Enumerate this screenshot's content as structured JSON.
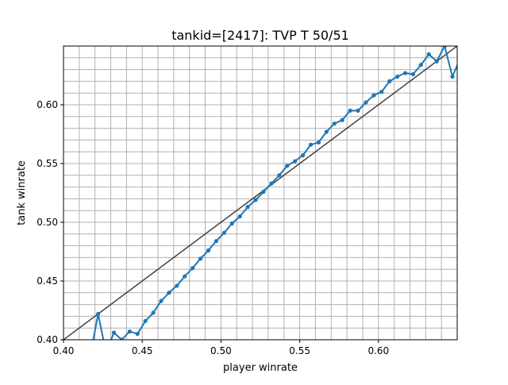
{
  "chart_data": {
    "type": "line",
    "title": "tankid=[2417]: TVP T 50/51",
    "xlabel": "player winrate",
    "ylabel": "tank winrate",
    "xlim": [
      0.4,
      0.65
    ],
    "ylim": [
      0.4,
      0.65
    ],
    "x_ticks": [
      "0.40",
      "0.45",
      "0.50",
      "0.55",
      "0.60"
    ],
    "y_ticks": [
      "0.40",
      "0.45",
      "0.50",
      "0.55",
      "0.60"
    ],
    "x_tick_values": [
      0.4,
      0.45,
      0.5,
      0.55,
      0.6
    ],
    "y_tick_values": [
      0.4,
      0.45,
      0.5,
      0.55,
      0.6
    ],
    "grid": true,
    "minor_grid_step": 0.01,
    "series": [
      {
        "color": "#1f77b4",
        "x": [
          0.417,
          0.422,
          0.427,
          0.432,
          0.437,
          0.442,
          0.447,
          0.452,
          0.457,
          0.462,
          0.467,
          0.472,
          0.477,
          0.482,
          0.487,
          0.492,
          0.497,
          0.502,
          0.507,
          0.512,
          0.517,
          0.522,
          0.527,
          0.532,
          0.537,
          0.542,
          0.547,
          0.552,
          0.557,
          0.562,
          0.567,
          0.572,
          0.577,
          0.582,
          0.587,
          0.592,
          0.597,
          0.602,
          0.607,
          0.612,
          0.617,
          0.622,
          0.627,
          0.632,
          0.637,
          0.642,
          0.647,
          0.652
        ],
        "y": [
          0.386,
          0.422,
          0.389,
          0.406,
          0.4,
          0.407,
          0.405,
          0.416,
          0.423,
          0.433,
          0.44,
          0.446,
          0.454,
          0.461,
          0.469,
          0.476,
          0.484,
          0.491,
          0.499,
          0.505,
          0.513,
          0.519,
          0.526,
          0.533,
          0.54,
          0.548,
          0.552,
          0.557,
          0.566,
          0.568,
          0.577,
          0.584,
          0.587,
          0.595,
          0.595,
          0.602,
          0.608,
          0.611,
          0.62,
          0.624,
          0.627,
          0.626,
          0.634,
          0.643,
          0.637,
          0.65,
          0.624,
          0.64
        ]
      },
      {
        "color": "#404040",
        "x": [
          0.4,
          0.65
        ],
        "y": [
          0.4,
          0.65
        ]
      }
    ]
  }
}
